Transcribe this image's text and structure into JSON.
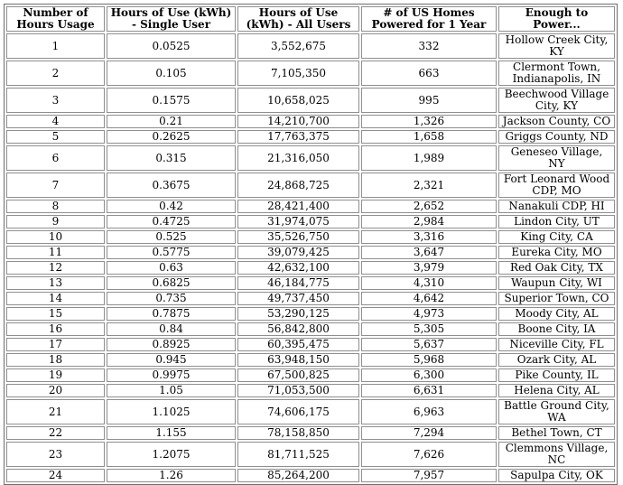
{
  "chart_data": {
    "type": "table",
    "title": "",
    "columns": [
      "Number of Hours Usage",
      "Hours of Use (kWh) - Single User",
      "Hours of Use (kWh) - All Users",
      "# of US Homes Powered for 1 Year",
      "Enough to Power..."
    ],
    "rows": [
      [
        "1",
        "0.0525",
        "3,552,675",
        "332",
        "Hollow Creek City, KY"
      ],
      [
        "2",
        "0.105",
        "7,105,350",
        "663",
        "Clermont Town, Indianapolis, IN"
      ],
      [
        "3",
        "0.1575",
        "10,658,025",
        "995",
        "Beechwood Village City, KY"
      ],
      [
        "4",
        "0.21",
        "14,210,700",
        "1,326",
        "Jackson County, CO"
      ],
      [
        "5",
        "0.2625",
        "17,763,375",
        "1,658",
        "Griggs County, ND"
      ],
      [
        "6",
        "0.315",
        "21,316,050",
        "1,989",
        "Geneseo Village, NY"
      ],
      [
        "7",
        "0.3675",
        "24,868,725",
        "2,321",
        "Fort Leonard Wood CDP, MO"
      ],
      [
        "8",
        "0.42",
        "28,421,400",
        "2,652",
        "Nanakuli CDP, HI"
      ],
      [
        "9",
        "0.4725",
        "31,974,075",
        "2,984",
        "Lindon City, UT"
      ],
      [
        "10",
        "0.525",
        "35,526,750",
        "3,316",
        "King City, CA"
      ],
      [
        "11",
        "0.5775",
        "39,079,425",
        "3,647",
        "Eureka City, MO"
      ],
      [
        "12",
        "0.63",
        "42,632,100",
        "3,979",
        "Red Oak City, TX"
      ],
      [
        "13",
        "0.6825",
        "46,184,775",
        "4,310",
        "Waupun City, WI"
      ],
      [
        "14",
        "0.735",
        "49,737,450",
        "4,642",
        "Superior Town, CO"
      ],
      [
        "15",
        "0.7875",
        "53,290,125",
        "4,973",
        "Moody City, AL"
      ],
      [
        "16",
        "0.84",
        "56,842,800",
        "5,305",
        "Boone City, IA"
      ],
      [
        "17",
        "0.8925",
        "60,395,475",
        "5,637",
        "Niceville City, FL"
      ],
      [
        "18",
        "0.945",
        "63,948,150",
        "5,968",
        "Ozark City, AL"
      ],
      [
        "19",
        "0.9975",
        "67,500,825",
        "6,300",
        "Pike County, IL"
      ],
      [
        "20",
        "1.05",
        "71,053,500",
        "6,631",
        "Helena City, AL"
      ],
      [
        "21",
        "1.1025",
        "74,606,175",
        "6,963",
        "Battle Ground City, WA"
      ],
      [
        "22",
        "1.155",
        "78,158,850",
        "7,294",
        "Bethel Town, CT"
      ],
      [
        "23",
        "1.2075",
        "81,711,525",
        "7,626",
        "Clemmons Village, NC"
      ],
      [
        "24",
        "1.26",
        "85,264,200",
        "7,957",
        "Sapulpa City, OK"
      ]
    ],
    "layout": {
      "grid": true,
      "header_bold": true,
      "text_align": "center",
      "border_color": "#8f8f8f",
      "background_color": "#ffffff",
      "text_color": "#000000"
    }
  }
}
